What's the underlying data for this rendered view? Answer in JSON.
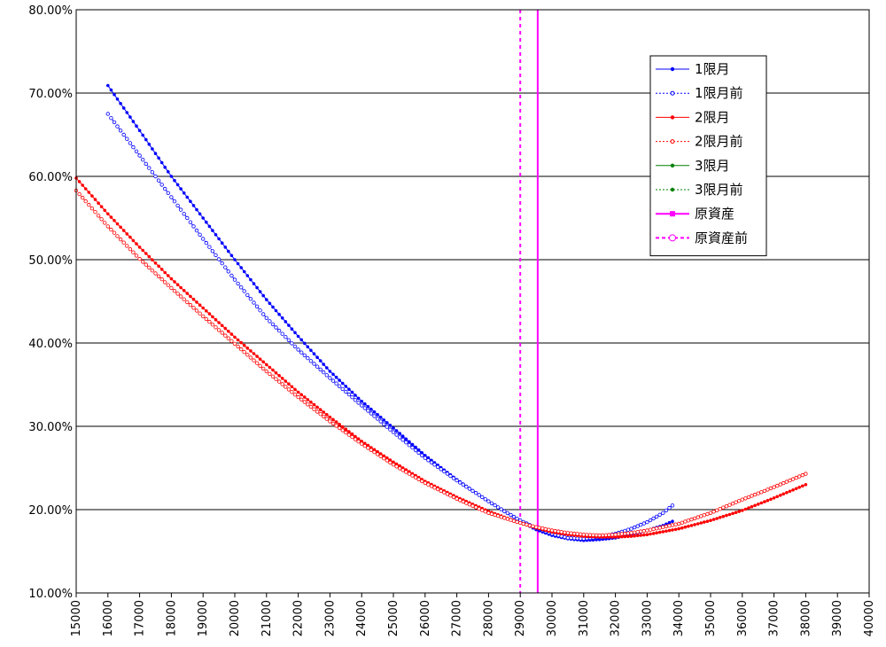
{
  "chart_data": {
    "type": "line",
    "title": "",
    "xlabel": "",
    "ylabel": "",
    "xlim": [
      15000,
      40000
    ],
    "ylim": [
      0.1,
      0.8
    ],
    "x_ticks": [
      "15000",
      "16000",
      "17000",
      "18000",
      "19000",
      "20000",
      "21000",
      "22000",
      "23000",
      "24000",
      "25000",
      "26000",
      "27000",
      "28000",
      "29000",
      "30000",
      "31000",
      "32000",
      "33000",
      "34000",
      "35000",
      "36000",
      "37000",
      "38000",
      "39000",
      "40000"
    ],
    "y_ticks": [
      "10.00%",
      "20.00%",
      "30.00%",
      "40.00%",
      "50.00%",
      "60.00%",
      "70.00%",
      "80.00%"
    ],
    "grid": "horizontal",
    "legend_position": "top-right",
    "series": [
      {
        "name": "1限月",
        "color": "#0000ff",
        "style": "solid",
        "marker": "filled",
        "x": [
          16000,
          17000,
          18000,
          19000,
          20000,
          21000,
          22000,
          23000,
          24000,
          25000,
          26000,
          27000,
          28000,
          28500,
          29000,
          29500,
          30000,
          30500,
          31000,
          31500,
          32000,
          32500,
          33000,
          33500,
          33800
        ],
        "y": [
          0.709,
          0.655,
          0.6,
          0.55,
          0.5,
          0.452,
          0.408,
          0.366,
          0.33,
          0.298,
          0.265,
          0.236,
          0.21,
          0.198,
          0.186,
          0.176,
          0.169,
          0.165,
          0.163,
          0.164,
          0.166,
          0.17,
          0.175,
          0.181,
          0.186
        ]
      },
      {
        "name": "1限月前",
        "color": "#0000ff",
        "style": "dotted",
        "marker": "open",
        "x": [
          16000,
          17000,
          18000,
          19000,
          20000,
          21000,
          22000,
          23000,
          24000,
          25000,
          26000,
          27000,
          28000,
          28500,
          29000,
          29500,
          30000,
          30500,
          31000,
          31500,
          32000,
          32500,
          33000,
          33500,
          33800
        ],
        "y": [
          0.675,
          0.625,
          0.575,
          0.525,
          0.476,
          0.43,
          0.392,
          0.358,
          0.325,
          0.293,
          0.262,
          0.235,
          0.21,
          0.198,
          0.187,
          0.178,
          0.171,
          0.166,
          0.165,
          0.167,
          0.171,
          0.177,
          0.185,
          0.196,
          0.205
        ]
      },
      {
        "name": "2限月",
        "color": "#ff0000",
        "style": "solid",
        "marker": "filled",
        "x": [
          15000,
          16000,
          17000,
          18000,
          19000,
          20000,
          21000,
          22000,
          23000,
          24000,
          25000,
          26000,
          27000,
          28000,
          29000,
          29500,
          30000,
          30500,
          31000,
          31500,
          32000,
          32500,
          33000,
          34000,
          35000,
          36000,
          37000,
          38000
        ],
        "y": [
          0.598,
          0.555,
          0.515,
          0.477,
          0.442,
          0.407,
          0.374,
          0.341,
          0.311,
          0.282,
          0.257,
          0.234,
          0.215,
          0.198,
          0.184,
          0.178,
          0.173,
          0.17,
          0.168,
          0.167,
          0.167,
          0.168,
          0.17,
          0.177,
          0.187,
          0.199,
          0.214,
          0.23
        ]
      },
      {
        "name": "2限月前",
        "color": "#ff0000",
        "style": "dotted",
        "marker": "open",
        "x": [
          15000,
          16000,
          17000,
          18000,
          19000,
          20000,
          21000,
          22000,
          23000,
          24000,
          25000,
          26000,
          27000,
          28000,
          29000,
          29500,
          30000,
          30500,
          31000,
          31500,
          32000,
          32500,
          33000,
          34000,
          35000,
          36000,
          37000,
          38000
        ],
        "y": [
          0.583,
          0.54,
          0.501,
          0.466,
          0.432,
          0.399,
          0.366,
          0.335,
          0.306,
          0.279,
          0.254,
          0.232,
          0.213,
          0.196,
          0.184,
          0.179,
          0.175,
          0.172,
          0.17,
          0.169,
          0.17,
          0.172,
          0.175,
          0.183,
          0.196,
          0.212,
          0.227,
          0.243
        ]
      },
      {
        "name": "3限月",
        "color": "#008000",
        "style": "solid",
        "marker": "filled",
        "x": [],
        "y": []
      },
      {
        "name": "3限月前",
        "color": "#008000",
        "style": "dotted",
        "marker": "filled",
        "x": [],
        "y": []
      },
      {
        "name": "原資産",
        "color": "#ff00ff",
        "style": "solid",
        "marker": "square",
        "vertical_x": 29550
      },
      {
        "name": "原資産前",
        "color": "#ff00ff",
        "style": "dashed",
        "marker": "open",
        "vertical_x": 29000
      }
    ]
  }
}
